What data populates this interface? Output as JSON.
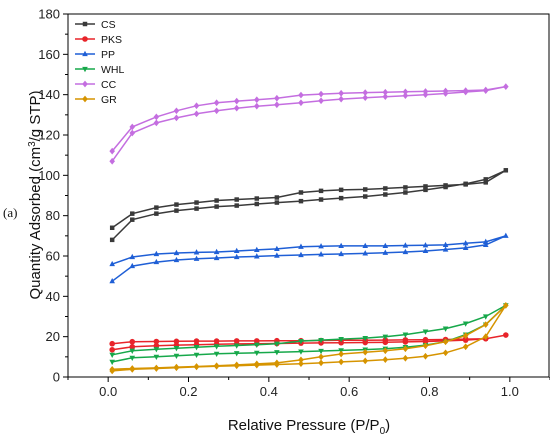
{
  "panel_label": "(a)",
  "chart_data": {
    "type": "line",
    "xlabel": "Relative Pressure (P/P0)",
    "ylabel": "Quantity Adsorbed (cm3/g STP)",
    "xlim": [
      -0.1,
      1.1
    ],
    "ylim": [
      0,
      180
    ],
    "xticks": [
      0.0,
      0.2,
      0.4,
      0.6,
      0.8,
      1.0
    ],
    "xtick_labels": [
      "0.0",
      "0.2",
      "0.4",
      "0.6",
      "0.8",
      "1.0"
    ],
    "yticks": [
      0,
      20,
      40,
      60,
      80,
      100,
      120,
      140,
      160,
      180
    ],
    "ytick_labels": [
      "0",
      "20",
      "40",
      "60",
      "80",
      "100",
      "120",
      "140",
      "160",
      "180"
    ],
    "grid": false,
    "legend_position": "top-left",
    "series": [
      {
        "name": "CS",
        "color": "#3a3a3a",
        "marker": "square",
        "x": [
          0.01,
          0.06,
          0.12,
          0.17,
          0.22,
          0.27,
          0.32,
          0.37,
          0.42,
          0.48,
          0.53,
          0.58,
          0.64,
          0.69,
          0.74,
          0.79,
          0.84,
          0.89,
          0.94,
          0.99,
          0.94,
          0.89,
          0.84,
          0.79,
          0.74,
          0.69,
          0.64,
          0.58,
          0.53,
          0.48,
          0.42,
          0.37,
          0.32,
          0.27,
          0.22,
          0.17,
          0.12,
          0.06,
          0.01
        ],
        "y": [
          68.0,
          78.0,
          81.0,
          82.5,
          83.5,
          84.5,
          85.0,
          85.8,
          86.5,
          87.2,
          88.0,
          88.7,
          89.5,
          90.5,
          91.5,
          92.8,
          94.2,
          95.8,
          98.0,
          102.5,
          96.5,
          95.5,
          95.0,
          94.5,
          94.0,
          93.5,
          93.0,
          92.8,
          92.3,
          91.5,
          89.0,
          88.5,
          88.0,
          87.5,
          86.5,
          85.5,
          84.0,
          81.0,
          74.0
        ]
      },
      {
        "name": "PKS",
        "color": "#e8242a",
        "marker": "circle",
        "x": [
          0.01,
          0.06,
          0.12,
          0.17,
          0.22,
          0.27,
          0.32,
          0.37,
          0.42,
          0.48,
          0.53,
          0.58,
          0.64,
          0.69,
          0.74,
          0.79,
          0.84,
          0.89,
          0.94,
          0.99,
          0.94,
          0.89,
          0.84,
          0.79,
          0.74,
          0.69,
          0.64,
          0.58,
          0.53,
          0.48,
          0.42,
          0.37,
          0.32,
          0.27,
          0.22,
          0.17,
          0.12,
          0.06,
          0.01
        ],
        "y": [
          13.5,
          15.0,
          15.5,
          15.8,
          16.0,
          16.2,
          16.4,
          16.5,
          16.6,
          16.8,
          16.9,
          17.0,
          17.1,
          17.2,
          17.4,
          17.6,
          17.9,
          18.3,
          19.0,
          20.8,
          19.0,
          18.8,
          18.6,
          18.5,
          18.4,
          18.3,
          18.2,
          18.2,
          18.1,
          18.0,
          18.0,
          17.9,
          17.9,
          17.8,
          17.8,
          17.7,
          17.6,
          17.5,
          16.5
        ]
      },
      {
        "name": "PP",
        "color": "#1f5fd6",
        "marker": "triangle-up",
        "x": [
          0.01,
          0.06,
          0.12,
          0.17,
          0.22,
          0.27,
          0.32,
          0.37,
          0.42,
          0.48,
          0.53,
          0.58,
          0.64,
          0.69,
          0.74,
          0.79,
          0.84,
          0.89,
          0.94,
          0.99,
          0.94,
          0.89,
          0.84,
          0.79,
          0.74,
          0.69,
          0.64,
          0.58,
          0.53,
          0.48,
          0.42,
          0.37,
          0.32,
          0.27,
          0.22,
          0.17,
          0.12,
          0.06,
          0.01
        ],
        "y": [
          47.5,
          55.0,
          57.0,
          58.0,
          58.6,
          59.0,
          59.5,
          59.8,
          60.2,
          60.5,
          60.8,
          61.0,
          61.3,
          61.6,
          62.0,
          62.5,
          63.2,
          64.0,
          65.5,
          70.0,
          67.0,
          66.3,
          65.5,
          65.3,
          65.2,
          65.0,
          65.0,
          65.0,
          64.8,
          64.6,
          63.5,
          63.0,
          62.5,
          62.0,
          61.8,
          61.5,
          61.0,
          59.5,
          56.0
        ]
      },
      {
        "name": "WHL",
        "color": "#16a84a",
        "marker": "triangle-down",
        "x": [
          0.01,
          0.06,
          0.12,
          0.17,
          0.22,
          0.27,
          0.32,
          0.37,
          0.42,
          0.48,
          0.53,
          0.58,
          0.64,
          0.69,
          0.74,
          0.79,
          0.84,
          0.89,
          0.94,
          0.99,
          0.94,
          0.89,
          0.84,
          0.79,
          0.74,
          0.69,
          0.64,
          0.58,
          0.53,
          0.48,
          0.42,
          0.37,
          0.32,
          0.27,
          0.22,
          0.17,
          0.12,
          0.06,
          0.01
        ],
        "y": [
          7.5,
          9.5,
          10.0,
          10.5,
          11.0,
          11.5,
          11.8,
          12.0,
          12.3,
          12.6,
          12.9,
          13.2,
          13.6,
          14.0,
          14.8,
          15.8,
          17.5,
          21.0,
          26.0,
          35.5,
          30.0,
          26.5,
          24.0,
          22.5,
          21.0,
          20.0,
          19.3,
          18.8,
          18.3,
          17.8,
          16.5,
          16.0,
          15.6,
          15.2,
          14.8,
          14.3,
          13.8,
          13.0,
          11.0
        ]
      },
      {
        "name": "CC",
        "color": "#c46ee0",
        "marker": "diamond",
        "x": [
          0.01,
          0.06,
          0.12,
          0.17,
          0.22,
          0.27,
          0.32,
          0.37,
          0.42,
          0.48,
          0.53,
          0.58,
          0.64,
          0.69,
          0.74,
          0.79,
          0.84,
          0.89,
          0.94,
          0.99,
          0.94,
          0.89,
          0.84,
          0.79,
          0.74,
          0.69,
          0.64,
          0.58,
          0.53,
          0.48,
          0.42,
          0.37,
          0.32,
          0.27,
          0.22,
          0.17,
          0.12,
          0.06,
          0.01
        ],
        "y": [
          107.0,
          121.0,
          126.0,
          128.5,
          130.5,
          132.0,
          133.3,
          134.3,
          135.0,
          136.0,
          137.0,
          137.8,
          138.5,
          139.0,
          139.5,
          140.0,
          140.6,
          141.3,
          142.0,
          144.0,
          142.3,
          142.0,
          141.8,
          141.6,
          141.4,
          141.2,
          141.0,
          140.7,
          140.3,
          139.8,
          138.2,
          137.5,
          136.8,
          136.0,
          134.5,
          132.0,
          129.0,
          124.0,
          112.0
        ]
      },
      {
        "name": "GR",
        "color": "#d69400",
        "marker": "diamond",
        "x": [
          0.01,
          0.06,
          0.12,
          0.17,
          0.22,
          0.27,
          0.32,
          0.37,
          0.42,
          0.48,
          0.53,
          0.58,
          0.64,
          0.69,
          0.74,
          0.79,
          0.84,
          0.89,
          0.94,
          0.99,
          0.94,
          0.89,
          0.84,
          0.79,
          0.74,
          0.69,
          0.64,
          0.58,
          0.53,
          0.48,
          0.42,
          0.37,
          0.32,
          0.27,
          0.22,
          0.17,
          0.12,
          0.06,
          0.01
        ],
        "y": [
          3.0,
          3.8,
          4.2,
          4.6,
          5.0,
          5.3,
          5.6,
          5.9,
          6.2,
          6.6,
          7.0,
          7.5,
          8.0,
          8.6,
          9.3,
          10.3,
          12.0,
          15.0,
          20.0,
          35.5,
          26.0,
          20.5,
          17.5,
          15.5,
          14.0,
          13.0,
          12.3,
          11.4,
          10.0,
          8.5,
          7.0,
          6.5,
          6.0,
          5.6,
          5.2,
          4.9,
          4.5,
          4.2,
          3.8
        ]
      }
    ]
  }
}
